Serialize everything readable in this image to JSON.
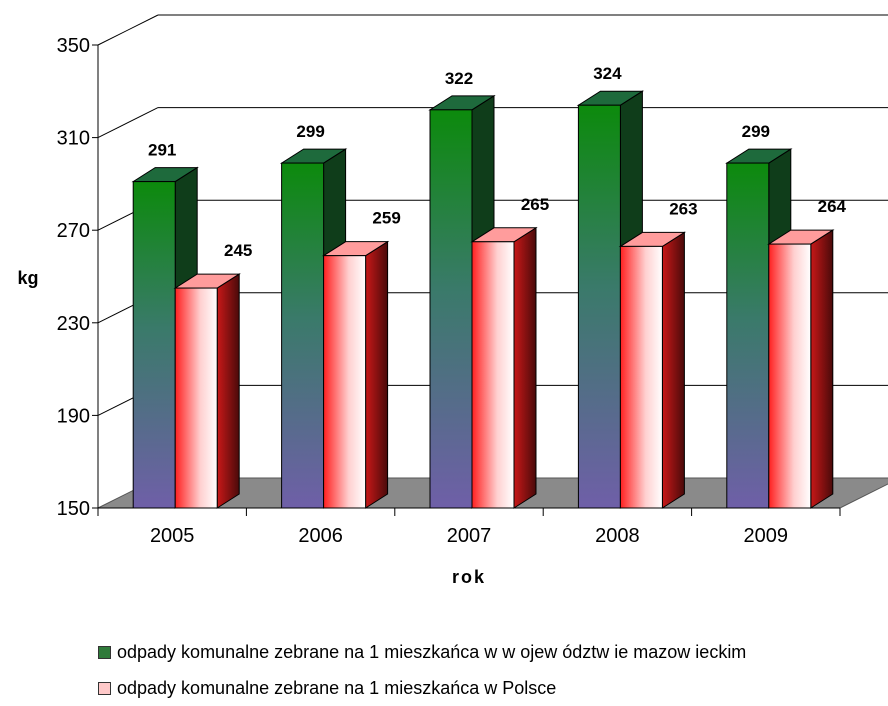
{
  "chart_data": {
    "type": "bar",
    "style": "3d-clustered-column",
    "categories": [
      "2005",
      "2006",
      "2007",
      "2008",
      "2009"
    ],
    "series": [
      {
        "name": "odpady komunalne zebrane na 1 mieszkańca w w ojew ództw ie mazow ieckim",
        "values": [
          291,
          299,
          322,
          324,
          299
        ],
        "color": "#1e8a1e"
      },
      {
        "name": "odpady komunalne zebrane na 1 mieszkańca w Polsce",
        "values": [
          245,
          259,
          265,
          263,
          264
        ],
        "color": "#ff3333"
      }
    ],
    "ylabel": "kg",
    "xlabel": "rok",
    "ylim": [
      150,
      350
    ],
    "yticks": [
      "150",
      "190",
      "230",
      "270",
      "310",
      "350"
    ],
    "grid": true,
    "legend_position": "bottom"
  }
}
